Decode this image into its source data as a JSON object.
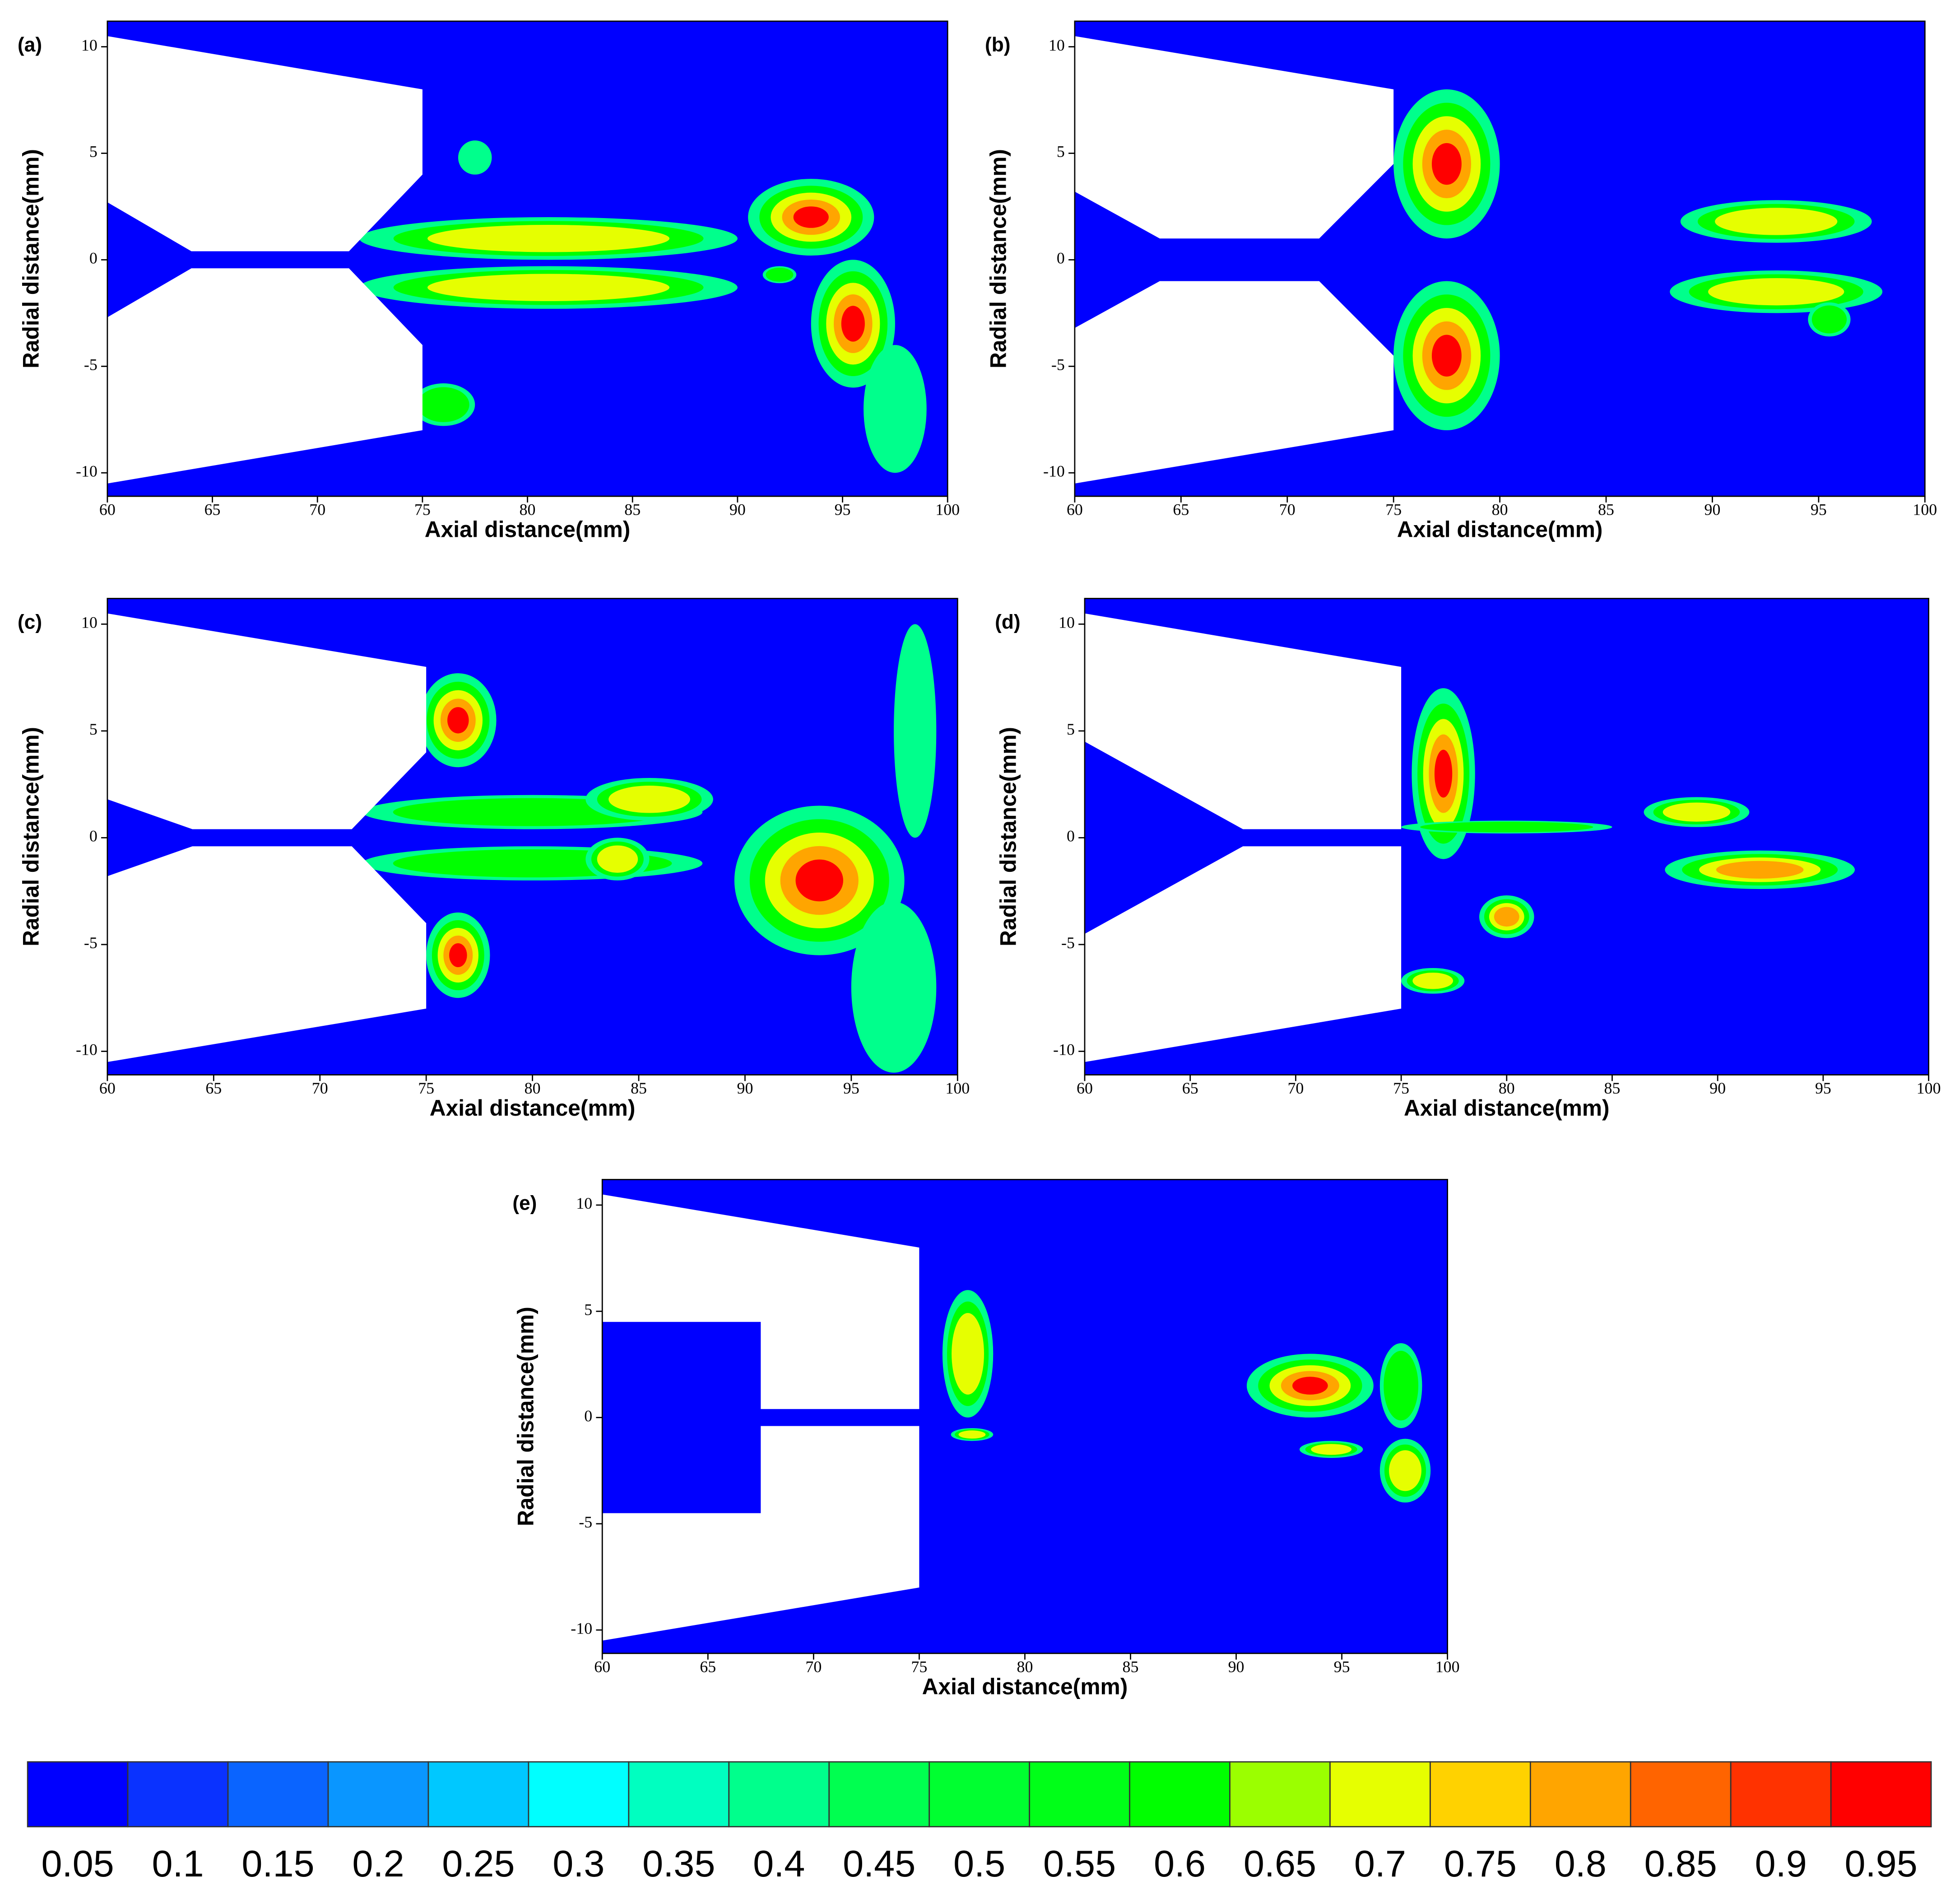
{
  "chart_data": [
    {
      "type": "contour",
      "label": "(a)",
      "xlabel": "Axial distance(mm)",
      "ylabel": "Radial distance(mm)",
      "xlim": [
        60,
        100
      ],
      "ylim": [
        -11.1,
        11.2
      ],
      "xticks": [
        60,
        65,
        70,
        75,
        80,
        85,
        90,
        95,
        100
      ],
      "yticks": [
        -10,
        -5,
        0,
        5,
        10
      ]
    },
    {
      "type": "contour",
      "label": "(b)",
      "xlabel": "Axial distance(mm)",
      "ylabel": "Radial distance(mm)",
      "xlim": [
        60,
        100
      ],
      "ylim": [
        -11.1,
        11.2
      ],
      "xticks": [
        60,
        65,
        70,
        75,
        80,
        85,
        90,
        95,
        100
      ],
      "yticks": [
        -10,
        -5,
        0,
        5,
        10
      ]
    },
    {
      "type": "contour",
      "label": "(c)",
      "xlabel": "Axial distance(mm)",
      "ylabel": "Radial distance(mm)",
      "xlim": [
        60,
        100
      ],
      "ylim": [
        -11.1,
        11.2
      ],
      "xticks": [
        60,
        65,
        70,
        75,
        80,
        85,
        90,
        95,
        100
      ],
      "yticks": [
        -10,
        -5,
        0,
        5,
        10
      ]
    },
    {
      "type": "contour",
      "label": "(d)",
      "xlabel": "Axial distance(mm)",
      "ylabel": "Radial distance(mm)",
      "xlim": [
        60,
        100
      ],
      "ylim": [
        -11.1,
        11.2
      ],
      "xticks": [
        60,
        65,
        70,
        75,
        80,
        85,
        90,
        95,
        100
      ],
      "yticks": [
        -10,
        -5,
        0,
        5,
        10
      ]
    },
    {
      "type": "contour",
      "label": "(e)",
      "xlabel": "Axial distance(mm)",
      "ylabel": "Radial distance(mm)",
      "xlim": [
        60,
        100
      ],
      "ylim": [
        -11.1,
        11.2
      ],
      "xticks": [
        60,
        65,
        70,
        75,
        80,
        85,
        90,
        95,
        100
      ],
      "yticks": [
        -10,
        -5,
        0,
        5,
        10
      ]
    },
    {
      "type": "colorbar",
      "levels": [
        0.05,
        0.1,
        0.15,
        0.2,
        0.25,
        0.3,
        0.35,
        0.4,
        0.45,
        0.5,
        0.55,
        0.6,
        0.65,
        0.7,
        0.75,
        0.8,
        0.85,
        0.9,
        0.95
      ],
      "colors": [
        "#0000ff",
        "#0a32ff",
        "#0a64ff",
        "#0a96ff",
        "#00c8ff",
        "#00ffff",
        "#00ffc0",
        "#00ff8c",
        "#00ff50",
        "#00ff30",
        "#00ff18",
        "#00ff00",
        "#9bff00",
        "#e6ff00",
        "#ffd200",
        "#ffa500",
        "#ff6400",
        "#ff3200",
        "#ff0000"
      ]
    }
  ]
}
